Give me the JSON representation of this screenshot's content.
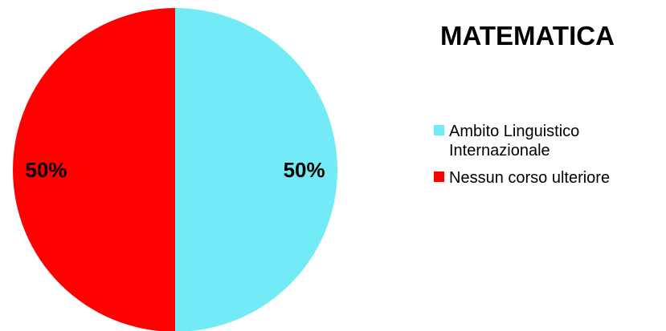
{
  "chart_data": {
    "type": "pie",
    "title": "MATEMATICA",
    "categories": [
      "Ambito Linguistico Internazionale",
      "Nessun corso ulteriore"
    ],
    "values": [
      50,
      50
    ],
    "data_labels": [
      "50%",
      "50%"
    ],
    "colors": [
      "#72EBF6",
      "#FF0000"
    ],
    "legend_position": "right"
  }
}
